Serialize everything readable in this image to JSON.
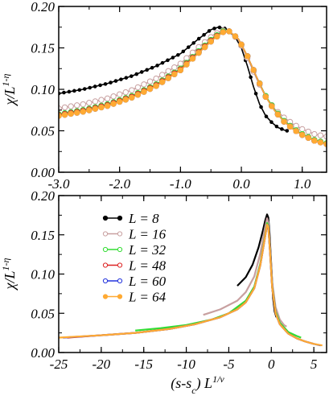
{
  "chart_data": [
    {
      "type": "line",
      "panel": "top",
      "title": "",
      "xlabel": "",
      "ylabel": "χ/L",
      "ylabel_exponent": "1-η",
      "xlim": [
        -3.0,
        1.4
      ],
      "ylim": [
        0.0,
        0.2
      ],
      "xticks": [
        -3.0,
        -2.0,
        -1.0,
        0.0,
        1.0
      ],
      "xtick_labels": [
        "-3.0",
        "-2.0",
        "-1.0",
        "0.0",
        "1.0"
      ],
      "yticks": [
        0.0,
        0.05,
        0.1,
        0.15,
        0.2
      ],
      "ytick_labels": [
        "0.00",
        "0.05",
        "0.10",
        "0.15",
        "0.20"
      ],
      "grid": false,
      "series": [
        {
          "L": 8,
          "color": "#000000",
          "marker": "circle-small",
          "points": [
            [
              -3.0,
              0.095
            ],
            [
              -2.6,
              0.1
            ],
            [
              -2.2,
              0.107
            ],
            [
              -1.8,
              0.116
            ],
            [
              -1.4,
              0.128
            ],
            [
              -1.0,
              0.143
            ],
            [
              -0.7,
              0.161
            ],
            [
              -0.5,
              0.172
            ],
            [
              -0.38,
              0.175
            ],
            [
              -0.25,
              0.173
            ],
            [
              -0.1,
              0.163
            ],
            [
              0.0,
              0.15
            ],
            [
              0.1,
              0.128
            ],
            [
              0.2,
              0.103
            ],
            [
              0.3,
              0.082
            ],
            [
              0.4,
              0.068
            ],
            [
              0.5,
              0.06
            ],
            [
              0.6,
              0.054
            ],
            [
              0.7,
              0.051
            ],
            [
              0.75,
              0.05
            ]
          ]
        },
        {
          "L": 16,
          "color": "#c8a0a0",
          "marker": "circle-open",
          "points": [
            [
              -3.0,
              0.077
            ],
            [
              -2.6,
              0.082
            ],
            [
              -2.2,
              0.089
            ],
            [
              -1.8,
              0.099
            ],
            [
              -1.4,
              0.113
            ],
            [
              -1.0,
              0.131
            ],
            [
              -0.7,
              0.151
            ],
            [
              -0.45,
              0.166
            ],
            [
              -0.3,
              0.171
            ],
            [
              -0.2,
              0.17
            ],
            [
              -0.05,
              0.16
            ],
            [
              0.1,
              0.138
            ],
            [
              0.25,
              0.113
            ],
            [
              0.4,
              0.091
            ],
            [
              0.55,
              0.076
            ],
            [
              0.7,
              0.066
            ],
            [
              0.85,
              0.058
            ],
            [
              1.0,
              0.052
            ],
            [
              1.2,
              0.046
            ],
            [
              1.4,
              0.043
            ]
          ]
        },
        {
          "L": 32,
          "color": "#33dd33",
          "marker": "circle-open",
          "points": [
            [
              -3.0,
              0.07
            ],
            [
              -2.6,
              0.075
            ],
            [
              -2.2,
              0.082
            ],
            [
              -1.8,
              0.092
            ],
            [
              -1.4,
              0.106
            ],
            [
              -1.0,
              0.125
            ],
            [
              -0.7,
              0.146
            ],
            [
              -0.45,
              0.163
            ],
            [
              -0.3,
              0.17
            ],
            [
              -0.2,
              0.17
            ],
            [
              -0.05,
              0.161
            ],
            [
              0.1,
              0.14
            ],
            [
              0.25,
              0.115
            ],
            [
              0.4,
              0.092
            ],
            [
              0.55,
              0.075
            ],
            [
              0.7,
              0.062
            ],
            [
              0.85,
              0.053
            ],
            [
              1.0,
              0.046
            ],
            [
              1.2,
              0.039
            ],
            [
              1.4,
              0.035
            ]
          ]
        },
        {
          "L": 48,
          "color": "#dd2222",
          "marker": "circle-open",
          "points": [
            [
              -3.0,
              0.069
            ],
            [
              -2.6,
              0.074
            ],
            [
              -2.2,
              0.081
            ],
            [
              -1.8,
              0.091
            ],
            [
              -1.4,
              0.105
            ],
            [
              -1.0,
              0.124
            ],
            [
              -0.7,
              0.145
            ],
            [
              -0.45,
              0.162
            ],
            [
              -0.3,
              0.169
            ],
            [
              -0.2,
              0.17
            ],
            [
              -0.05,
              0.161
            ],
            [
              0.1,
              0.14
            ],
            [
              0.25,
              0.115
            ],
            [
              0.4,
              0.091
            ],
            [
              0.55,
              0.074
            ],
            [
              0.7,
              0.061
            ],
            [
              0.85,
              0.052
            ],
            [
              1.0,
              0.045
            ],
            [
              1.2,
              0.038
            ],
            [
              1.4,
              0.034
            ]
          ]
        },
        {
          "L": 60,
          "color": "#2233dd",
          "marker": "circle-open",
          "points": [
            [
              -3.0,
              0.068
            ],
            [
              -2.6,
              0.073
            ],
            [
              -2.2,
              0.08
            ],
            [
              -1.8,
              0.09
            ],
            [
              -1.4,
              0.104
            ],
            [
              -1.0,
              0.123
            ],
            [
              -0.7,
              0.144
            ],
            [
              -0.45,
              0.161
            ],
            [
              -0.3,
              0.169
            ],
            [
              -0.2,
              0.17
            ],
            [
              -0.05,
              0.161
            ],
            [
              0.1,
              0.14
            ],
            [
              0.25,
              0.115
            ],
            [
              0.4,
              0.091
            ],
            [
              0.55,
              0.074
            ],
            [
              0.7,
              0.061
            ],
            [
              0.85,
              0.052
            ],
            [
              1.0,
              0.045
            ],
            [
              1.2,
              0.038
            ],
            [
              1.4,
              0.034
            ]
          ]
        },
        {
          "L": 64,
          "color": "#ffaa33",
          "marker": "circle-filled",
          "points": [
            [
              -3.0,
              0.068
            ],
            [
              -2.6,
              0.073
            ],
            [
              -2.2,
              0.08
            ],
            [
              -1.8,
              0.09
            ],
            [
              -1.4,
              0.104
            ],
            [
              -1.0,
              0.123
            ],
            [
              -0.7,
              0.144
            ],
            [
              -0.45,
              0.161
            ],
            [
              -0.3,
              0.169
            ],
            [
              -0.2,
              0.17
            ],
            [
              -0.05,
              0.161
            ],
            [
              0.1,
              0.14
            ],
            [
              0.25,
              0.115
            ],
            [
              0.4,
              0.091
            ],
            [
              0.55,
              0.074
            ],
            [
              0.7,
              0.061
            ],
            [
              0.85,
              0.052
            ],
            [
              1.0,
              0.045
            ],
            [
              1.2,
              0.038
            ],
            [
              1.4,
              0.034
            ]
          ]
        }
      ]
    },
    {
      "type": "line",
      "panel": "bottom",
      "title": "",
      "xlabel": "(s-s",
      "xlabel_sub": "c",
      "xlabel_tail": ") L",
      "xlabel_exponent": "1/ν",
      "ylabel": "χ/L",
      "ylabel_exponent": "1-η",
      "xlim": [
        -25,
        6.5
      ],
      "ylim": [
        0.0,
        0.2
      ],
      "xticks": [
        -25,
        -20,
        -15,
        -10,
        -5,
        0,
        5
      ],
      "xtick_labels": [
        "-25",
        "-20",
        "-15",
        "-10",
        "-5",
        "0",
        "5"
      ],
      "yticks": [
        0.0,
        0.05,
        0.1,
        0.15,
        0.2
      ],
      "ytick_labels": [
        "0.00",
        "0.05",
        "0.10",
        "0.15",
        "0.20"
      ],
      "grid": false,
      "legend_position": "top-left",
      "legend": [
        "L = 8",
        "L = 16",
        "L = 32",
        "L = 48",
        "L = 60",
        "L = 64"
      ],
      "series": [
        {
          "L": 8,
          "color": "#000000",
          "points": [
            [
              -4.0,
              0.085
            ],
            [
              -3.0,
              0.096
            ],
            [
              -2.2,
              0.112
            ],
            [
              -1.5,
              0.134
            ],
            [
              -1.0,
              0.155
            ],
            [
              -0.7,
              0.169
            ],
            [
              -0.5,
              0.176
            ],
            [
              -0.35,
              0.172
            ],
            [
              -0.2,
              0.15
            ],
            [
              0.0,
              0.11
            ],
            [
              0.2,
              0.07
            ],
            [
              0.4,
              0.052
            ],
            [
              0.6,
              0.045
            ]
          ]
        },
        {
          "L": 16,
          "color": "#c8a0a0",
          "points": [
            [
              -8.0,
              0.048
            ],
            [
              -6.0,
              0.055
            ],
            [
              -4.0,
              0.066
            ],
            [
              -3.0,
              0.077
            ],
            [
              -2.0,
              0.097
            ],
            [
              -1.3,
              0.126
            ],
            [
              -0.8,
              0.156
            ],
            [
              -0.5,
              0.171
            ],
            [
              -0.35,
              0.166
            ],
            [
              -0.15,
              0.135
            ],
            [
              0.1,
              0.09
            ],
            [
              0.5,
              0.058
            ],
            [
              1.0,
              0.042
            ],
            [
              1.5,
              0.035
            ],
            [
              1.8,
              0.033
            ]
          ]
        },
        {
          "L": 32,
          "color": "#33dd33",
          "points": [
            [
              -16.0,
              0.028
            ],
            [
              -13.0,
              0.031
            ],
            [
              -10.0,
              0.035
            ],
            [
              -7.0,
              0.042
            ],
            [
              -5.0,
              0.05
            ],
            [
              -3.0,
              0.066
            ],
            [
              -2.0,
              0.084
            ],
            [
              -1.3,
              0.113
            ],
            [
              -0.8,
              0.145
            ],
            [
              -0.5,
              0.165
            ],
            [
              -0.35,
              0.161
            ],
            [
              -0.15,
              0.13
            ],
            [
              0.1,
              0.085
            ],
            [
              0.5,
              0.052
            ],
            [
              1.0,
              0.038
            ],
            [
              2.0,
              0.026
            ],
            [
              3.0,
              0.021
            ],
            [
              3.5,
              0.019
            ]
          ]
        },
        {
          "L": 48,
          "color": "#dd2222",
          "points": [
            [
              -24.0,
              0.019
            ],
            [
              -20.0,
              0.022
            ],
            [
              -16.0,
              0.025
            ],
            [
              -12.0,
              0.03
            ],
            [
              -9.0,
              0.036
            ],
            [
              -6.0,
              0.045
            ],
            [
              -4.0,
              0.055
            ],
            [
              -3.0,
              0.064
            ],
            [
              -2.0,
              0.082
            ],
            [
              -1.3,
              0.111
            ],
            [
              -0.8,
              0.143
            ],
            [
              -0.5,
              0.163
            ],
            [
              -0.35,
              0.16
            ],
            [
              -0.15,
              0.128
            ],
            [
              0.1,
              0.083
            ],
            [
              0.5,
              0.05
            ],
            [
              1.0,
              0.036
            ],
            [
              2.0,
              0.024
            ],
            [
              3.0,
              0.018
            ],
            [
              4.0,
              0.014
            ],
            [
              5.0,
              0.011
            ]
          ]
        },
        {
          "L": 60,
          "color": "#2233dd",
          "points": [
            [
              -24.5,
              0.019
            ],
            [
              -20.0,
              0.022
            ],
            [
              -16.0,
              0.025
            ],
            [
              -12.0,
              0.03
            ],
            [
              -9.0,
              0.036
            ],
            [
              -6.0,
              0.045
            ],
            [
              -4.0,
              0.055
            ],
            [
              -3.0,
              0.064
            ],
            [
              -2.0,
              0.082
            ],
            [
              -1.3,
              0.111
            ],
            [
              -0.8,
              0.143
            ],
            [
              -0.5,
              0.163
            ],
            [
              -0.35,
              0.16
            ],
            [
              -0.15,
              0.128
            ],
            [
              0.1,
              0.083
            ],
            [
              0.5,
              0.05
            ],
            [
              1.0,
              0.036
            ],
            [
              2.0,
              0.024
            ],
            [
              3.0,
              0.018
            ],
            [
              4.0,
              0.014
            ],
            [
              5.0,
              0.011
            ],
            [
              5.8,
              0.009
            ]
          ]
        },
        {
          "L": 64,
          "color": "#ffaa33",
          "points": [
            [
              -25.0,
              0.019
            ],
            [
              -20.0,
              0.022
            ],
            [
              -16.0,
              0.025
            ],
            [
              -12.0,
              0.03
            ],
            [
              -9.0,
              0.036
            ],
            [
              -6.0,
              0.045
            ],
            [
              -4.0,
              0.055
            ],
            [
              -3.0,
              0.064
            ],
            [
              -2.0,
              0.082
            ],
            [
              -1.3,
              0.111
            ],
            [
              -0.8,
              0.143
            ],
            [
              -0.5,
              0.163
            ],
            [
              -0.35,
              0.16
            ],
            [
              -0.15,
              0.128
            ],
            [
              0.1,
              0.083
            ],
            [
              0.5,
              0.05
            ],
            [
              1.0,
              0.036
            ],
            [
              2.0,
              0.024
            ],
            [
              3.0,
              0.018
            ],
            [
              4.0,
              0.014
            ],
            [
              5.0,
              0.011
            ],
            [
              6.0,
              0.009
            ]
          ]
        }
      ]
    }
  ]
}
